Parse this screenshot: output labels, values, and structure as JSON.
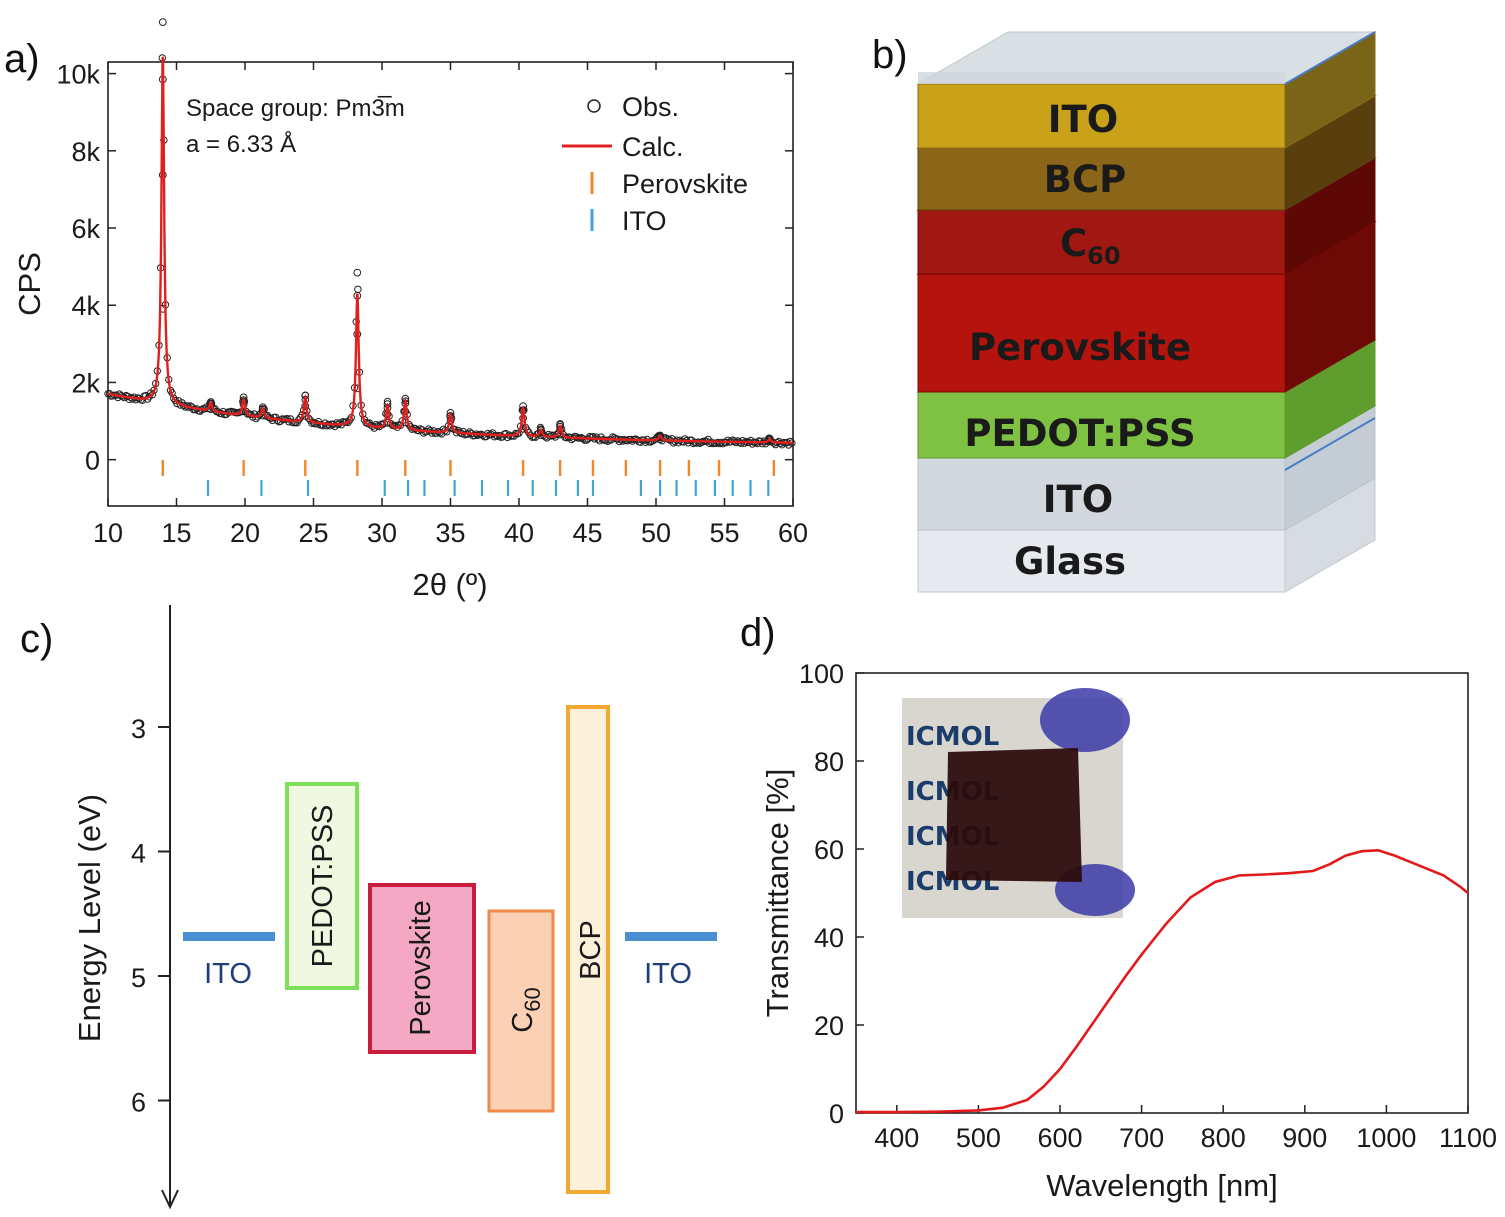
{
  "panels": {
    "a": "a)",
    "b": "b)",
    "c": "c)",
    "d": "d)"
  },
  "colors": {
    "calc": "#e0201f",
    "perovskite_tick": "#f0882a",
    "ito_tick": "#41a3d8",
    "ito_layer": "#cfd6dc",
    "glass_layer": "#e4e8ec",
    "ito_top_layer": "#c8a21a",
    "bcp_layer": "#8a6418",
    "c60_layer": "#a01812",
    "perovskite_layer": "#b3140f",
    "pedot_layer": "#7fbf3e",
    "ito_band": "#4a8fd4",
    "pedot_band_edge": "#7ee05a",
    "pedot_band_fill": "#f0f8e2",
    "perovskite_band_edge": "#c81d3d",
    "perovskite_band_fill": "#f5a8c4",
    "c60_band_edge": "#f08a4a",
    "c60_band_fill": "#fcd0b4",
    "bcp_band_edge": "#f0a830",
    "bcp_band_fill": "#fdf0da",
    "transmittance": "#e31a1c"
  },
  "xrd": {
    "annotation": {
      "line1": "Space group: Pm3̅m",
      "line2": "a = 6.33 Å"
    },
    "legend": {
      "obs": "Obs.",
      "calc": "Calc.",
      "perovskite": "Perovskite",
      "ito": "ITO"
    },
    "xlabel": "2θ (º)",
    "ylabel": "CPS"
  },
  "device": {
    "layers": [
      {
        "name": "ITO",
        "color_key": "ito_top_layer"
      },
      {
        "name": "BCP",
        "color_key": "bcp_layer"
      },
      {
        "name": "C",
        "sub": "60",
        "color_key": "c60_layer"
      },
      {
        "name": "Perovskite",
        "color_key": "perovskite_layer"
      },
      {
        "name": "PEDOT:PSS",
        "color_key": "pedot_layer"
      },
      {
        "name": "ITO",
        "color_key": "ito_layer"
      },
      {
        "name": "Glass",
        "color_key": "glass_layer"
      }
    ]
  },
  "energy": {
    "ylabel": "Energy Level (eV)",
    "y_ticks": [
      "3",
      "4",
      "5",
      "6"
    ],
    "bands": [
      {
        "name": "ITO",
        "type": "line",
        "level": 4.7
      },
      {
        "name": "PEDOT:PSS",
        "type": "box",
        "top": 3.45,
        "bottom": 5.1
      },
      {
        "name": "Perovskite",
        "type": "box",
        "top": 4.27,
        "bottom": 5.6
      },
      {
        "name": "C",
        "sub": "60",
        "type": "box",
        "top": 4.48,
        "bottom": 6.1
      },
      {
        "name": "BCP",
        "type": "box",
        "top": 2.85,
        "bottom": 6.75
      },
      {
        "name": "ITO",
        "type": "line",
        "level": 4.7
      }
    ]
  },
  "inset_photo": {
    "text_a": "ICMOL",
    "text_b": "ICMOL"
  },
  "chart_data": [
    {
      "type": "scatter",
      "panel": "a",
      "xlabel": "2θ (º)",
      "ylabel": "CPS",
      "xlim": [
        10,
        60
      ],
      "ylim": [
        -1200,
        10300
      ],
      "x_ticks": [
        "10",
        "15",
        "20",
        "25",
        "30",
        "35",
        "40",
        "45",
        "50",
        "55",
        "60"
      ],
      "y_ticks": [
        "0",
        "2k",
        "4k",
        "6k",
        "8k",
        "10k"
      ],
      "background": {
        "start": 1700,
        "end": 350,
        "decay": 0.055
      },
      "peaks": [
        {
          "x": 14.0,
          "calc": 9000,
          "obs": 9900
        },
        {
          "x": 17.5,
          "calc": 220,
          "obs": 250
        },
        {
          "x": 19.9,
          "calc": 420,
          "obs": 480
        },
        {
          "x": 21.3,
          "calc": 250,
          "obs": 280
        },
        {
          "x": 24.4,
          "calc": 650,
          "obs": 700
        },
        {
          "x": 28.2,
          "calc": 3450,
          "obs": 4000
        },
        {
          "x": 30.4,
          "calc": 600,
          "obs": 650
        },
        {
          "x": 31.7,
          "calc": 750,
          "obs": 820
        },
        {
          "x": 35.0,
          "calc": 480,
          "obs": 520
        },
        {
          "x": 40.3,
          "calc": 720,
          "obs": 780
        },
        {
          "x": 41.6,
          "calc": 180,
          "obs": 200
        },
        {
          "x": 43.0,
          "calc": 300,
          "obs": 330
        },
        {
          "x": 50.3,
          "calc": 120,
          "obs": 130
        },
        {
          "x": 58.3,
          "calc": 90,
          "obs": 100
        }
      ],
      "perovskite_ticks": [
        14.0,
        19.9,
        24.4,
        28.2,
        31.7,
        35.0,
        40.3,
        43.0,
        45.4,
        47.8,
        50.3,
        52.4,
        54.6,
        58.6
      ],
      "ito_ticks": [
        17.3,
        21.2,
        24.6,
        30.2,
        31.9,
        33.1,
        35.3,
        37.3,
        39.2,
        41.0,
        42.7,
        44.3,
        45.4,
        48.9,
        50.3,
        51.5,
        52.9,
        54.3,
        55.6,
        56.9,
        58.2
      ]
    },
    {
      "type": "line",
      "panel": "d",
      "xlabel": "Wavelength [nm]",
      "ylabel": "Transmittance [%]",
      "xlim": [
        350,
        1100
      ],
      "ylim": [
        0,
        100
      ],
      "x_ticks": [
        "400",
        "500",
        "600",
        "700",
        "800",
        "900",
        "1000",
        "1100"
      ],
      "y_ticks": [
        "0",
        "20",
        "40",
        "60",
        "80",
        "100"
      ],
      "x": [
        350,
        400,
        450,
        500,
        530,
        560,
        580,
        600,
        620,
        650,
        680,
        700,
        730,
        760,
        790,
        820,
        850,
        880,
        910,
        930,
        950,
        970,
        990,
        1010,
        1030,
        1050,
        1070,
        1090,
        1100
      ],
      "y": [
        0.2,
        0.2,
        0.3,
        0.6,
        1.2,
        3,
        6,
        10,
        15,
        23,
        31,
        36,
        43,
        49,
        52.5,
        54,
        54.2,
        54.5,
        55,
        56.5,
        58.5,
        59.5,
        59.7,
        58.5,
        57,
        55.5,
        54,
        51.5,
        50
      ]
    }
  ]
}
